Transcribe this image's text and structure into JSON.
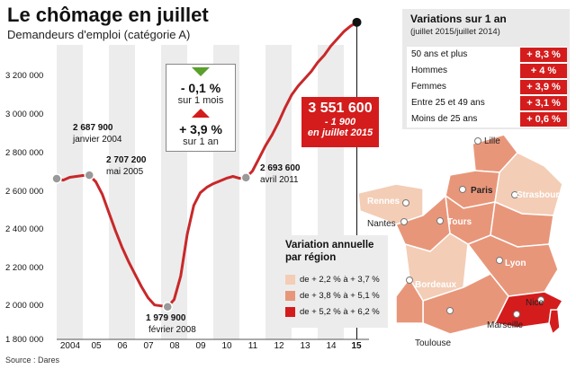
{
  "header": {
    "title": "Le chômage en juillet",
    "subtitle": "Demandeurs d'emploi (catégorie A)",
    "source": "Source : Dares"
  },
  "chart_data": {
    "type": "line",
    "title": "Le chômage en juillet",
    "subtitle": "Demandeurs d'emploi (catégorie A)",
    "ylim": [
      1800000,
      3650000
    ],
    "y_ticks": [
      "1 800 000",
      "2 000 000",
      "2 200 000",
      "2 400 000",
      "2 600 000",
      "2 800 000",
      "3 000 000",
      "3 200 000"
    ],
    "x_ticks": [
      "2004",
      "05",
      "06",
      "07",
      "08",
      "09",
      "10",
      "11",
      "12",
      "13",
      "14",
      "15"
    ],
    "series": [
      {
        "x": [
          2004.0,
          2004.25,
          2004.5,
          2004.75,
          2005.0,
          2005.25,
          2005.5,
          2005.75,
          2006.0,
          2006.25,
          2006.5,
          2006.75,
          2007.0,
          2007.25,
          2007.5,
          2007.75,
          2008.0,
          2008.25,
          2008.5,
          2008.75,
          2009.0,
          2009.25,
          2009.5,
          2009.75,
          2010.0,
          2010.25,
          2010.5,
          2010.75,
          2011.0,
          2011.25,
          2011.5,
          2011.75,
          2012.0,
          2012.25,
          2012.5,
          2012.75,
          2013.0,
          2013.25,
          2013.5,
          2013.75,
          2014.0,
          2014.25,
          2014.5,
          2014.75,
          2015.0,
          2015.25,
          2015.5
        ],
        "values": [
          2687900,
          2680000,
          2695000,
          2700000,
          2705000,
          2707200,
          2670000,
          2600000,
          2500000,
          2400000,
          2310000,
          2230000,
          2160000,
          2090000,
          2030000,
          1990000,
          1985000,
          1979900,
          2020000,
          2150000,
          2380000,
          2540000,
          2610000,
          2640000,
          2660000,
          2675000,
          2690000,
          2700000,
          2690000,
          2693600,
          2730000,
          2800000,
          2870000,
          2930000,
          3000000,
          3080000,
          3150000,
          3200000,
          3240000,
          3280000,
          3330000,
          3370000,
          3420000,
          3460000,
          3500000,
          3530000,
          3551600
        ]
      }
    ],
    "annotations": [
      {
        "value": "2 687 900",
        "label": "janvier 2004"
      },
      {
        "value": "2 707 200",
        "label": "mai 2005"
      },
      {
        "value": "1 979 900",
        "label": "février 2008"
      },
      {
        "value": "2 693 600",
        "label": "avril 2011"
      },
      {
        "value": "3 551 600",
        "label": "en juillet 2015",
        "change": "- 1 900"
      }
    ],
    "grid": false,
    "legend": "none"
  },
  "stats_box": {
    "month_value": "- 0,1 %",
    "month_label": "sur 1 mois",
    "year_value": "+ 3,9 %",
    "year_label": "sur 1 an"
  },
  "variations": {
    "title": "Variations sur 1 an",
    "subtitle": "(juillet 2015/juillet 2014)",
    "rows": [
      {
        "label": "50 ans et plus",
        "value": "+ 8,3 %"
      },
      {
        "label": "Hommes",
        "value": "+ 4 %"
      },
      {
        "label": "Femmes",
        "value": "+ 3,9 %"
      },
      {
        "label": "Entre 25 et 49 ans",
        "value": "+ 3,1 %"
      },
      {
        "label": "Moins de 25 ans",
        "value": "+ 0,6 %"
      }
    ]
  },
  "map": {
    "legend_title": "Variation annuelle par région",
    "legend": [
      {
        "label": "de + 2,2 % à + 3,7 %",
        "color": "#f3cdb6"
      },
      {
        "label": "de + 3,8 % à + 5,1 %",
        "color": "#e8967a"
      },
      {
        "label": "de + 5,2 % à + 6,2 %",
        "color": "#d41c1c"
      }
    ],
    "cities": {
      "lille": "Lille",
      "paris": "Paris",
      "strasbourg": "Strasbourg",
      "rennes": "Rennes",
      "nantes": "Nantes",
      "tours": "Tours",
      "lyon": "Lyon",
      "bordeaux": "Bordeaux",
      "toulouse": "Toulouse",
      "marseille": "Marseille",
      "nice": "Nice"
    }
  },
  "colors": {
    "accent": "#d41c1c",
    "line": "#c8282a",
    "arrow_down": "#5aa02c",
    "arrow_up": "#d41c1c"
  }
}
